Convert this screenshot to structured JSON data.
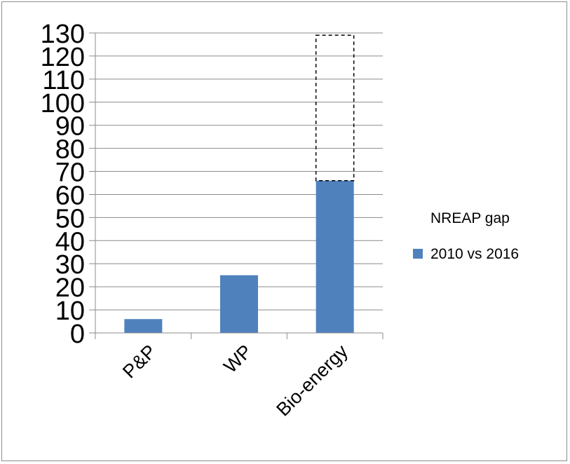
{
  "chart_data": {
    "type": "bar",
    "categories": [
      "P&P",
      "WP",
      "Bio-energy"
    ],
    "series": [
      {
        "name": "2010 vs 2016",
        "values": [
          6,
          25,
          66
        ],
        "color": "#4f81bd"
      }
    ],
    "extension": {
      "name": "NREAP gap",
      "base": 66,
      "top": 129,
      "category": "Bio-energy",
      "style": "dashed-outline"
    },
    "ylim": [
      0,
      130
    ],
    "yticks": [
      "0",
      "10",
      "20",
      "30",
      "40",
      "50",
      "60",
      "70",
      "80",
      "90",
      "100",
      "110",
      "120",
      "130"
    ],
    "grid": true,
    "legend_position": "right",
    "legend": {
      "gap_label": "NREAP gap",
      "series_label": "2010 vs 2016"
    }
  }
}
